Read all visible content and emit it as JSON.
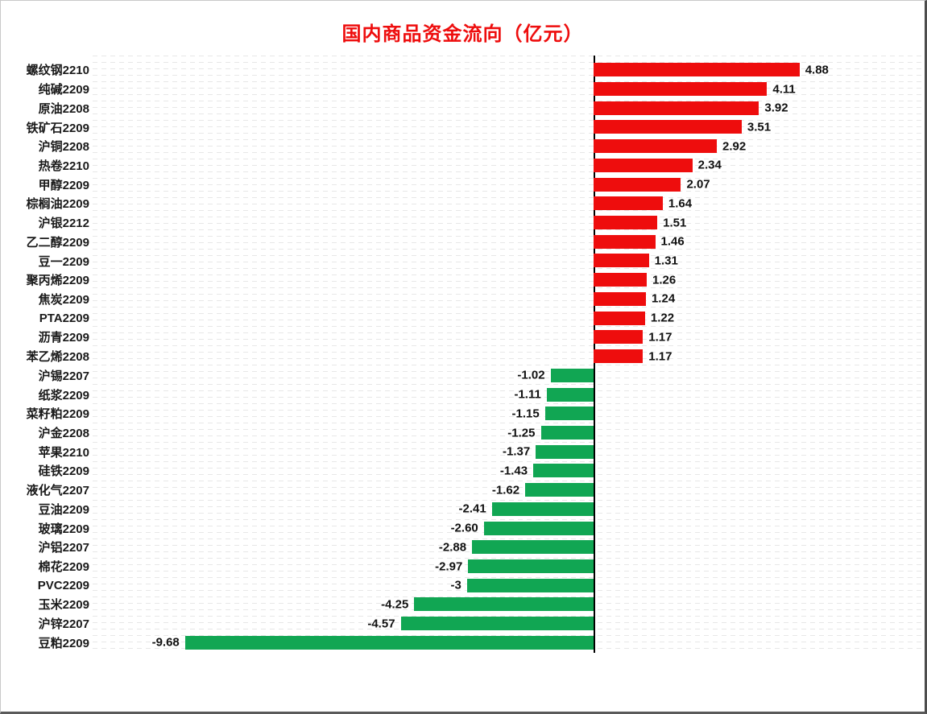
{
  "title": "国内商品资金流向（亿元）",
  "colors": {
    "title": "#ee0d0d",
    "positive_bar": "#ee0d0d",
    "negative_bar": "#11a653",
    "axis_line": "#000000",
    "grid_line": "#e7e7e7",
    "text": "#1a1a1a"
  },
  "chart_data": {
    "type": "bar",
    "orientation": "horizontal",
    "title": "国内商品资金流向（亿元）",
    "unit": "亿元",
    "grid": true,
    "xlim": [
      -11.9,
      7.8
    ],
    "categories": [
      "螺纹钢2210",
      "纯碱2209",
      "原油2208",
      "铁矿石2209",
      "沪铜2208",
      "热卷2210",
      "甲醇2209",
      "棕榈油2209",
      "沪银2212",
      "乙二醇2209",
      "豆一2209",
      "聚丙烯2209",
      "焦炭2209",
      "PTA2209",
      "沥青2209",
      "苯乙烯2208",
      "沪锡2207",
      "纸浆2209",
      "菜籽粕2209",
      "沪金2208",
      "苹果2210",
      "硅铁2209",
      "液化气2207",
      "豆油2209",
      "玻璃2209",
      "沪铝2207",
      "棉花2209",
      "PVC2209",
      "玉米2209",
      "沪锌2207",
      "豆粕2209"
    ],
    "values": [
      4.88,
      4.11,
      3.92,
      3.51,
      2.92,
      2.34,
      2.07,
      1.64,
      1.51,
      1.46,
      1.31,
      1.26,
      1.24,
      1.22,
      1.17,
      1.17,
      -1.02,
      -1.11,
      -1.15,
      -1.25,
      -1.37,
      -1.43,
      -1.62,
      -2.41,
      -2.6,
      -2.88,
      -2.97,
      -3,
      -4.25,
      -4.57,
      -9.68
    ],
    "value_labels": [
      "4.88",
      "4.11",
      "3.92",
      "3.51",
      "2.92",
      "2.34",
      "2.07",
      "1.64",
      "1.51",
      "1.46",
      "1.31",
      "1.26",
      "1.24",
      "1.22",
      "1.17",
      "1.17",
      "-1.02",
      "-1.11",
      "-1.15",
      "-1.25",
      "-1.37",
      "-1.43",
      "-1.62",
      "-2.41",
      "-2.60",
      "-2.88",
      "-2.97",
      "-3",
      "-4.25",
      "-4.57",
      "-9.68"
    ],
    "positive_color": "#ee0d0d",
    "negative_color": "#11a653"
  }
}
